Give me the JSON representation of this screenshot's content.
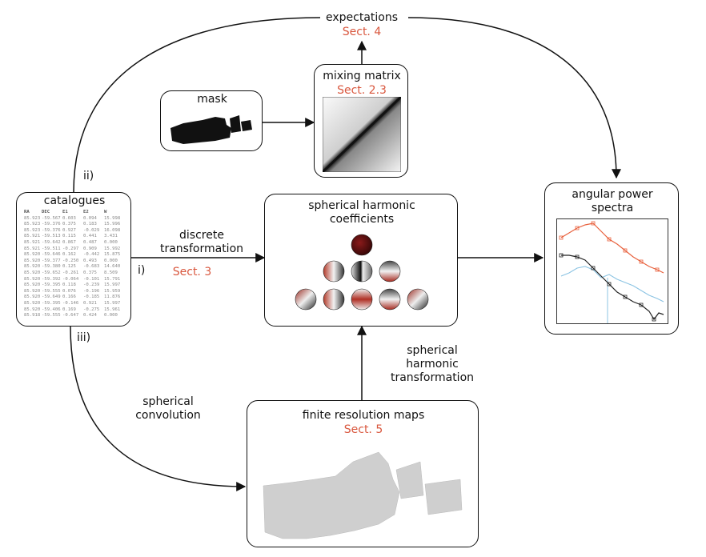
{
  "expectations": {
    "label": "expectations",
    "sect": "Sect. 4"
  },
  "mask": {
    "label": "mask"
  },
  "mixing_matrix": {
    "label": "mixing matrix",
    "sect": "Sect. 2.3"
  },
  "catalogues": {
    "label": "catalogues",
    "columns": [
      "RA",
      "DEC",
      "E1",
      "E2",
      "W"
    ],
    "rows": [
      [
        "85.923",
        "-59.567",
        "0.603",
        "0.094",
        "15.998"
      ],
      [
        "85.923",
        "-59.376",
        "0.375",
        "0.183",
        "15.996"
      ],
      [
        "85.923",
        "-59.376",
        "0.927",
        "-0.029",
        "16.098"
      ],
      [
        "85.921",
        "-59.513",
        "0.115",
        "0.441",
        "3.431"
      ],
      [
        "85.921",
        "-59.642",
        "0.867",
        "0.487",
        "0.000"
      ],
      [
        "85.921",
        "-59.511",
        "-0.297",
        "0.909",
        "15.992"
      ],
      [
        "85.920",
        "-59.646",
        "0.162",
        "-0.442",
        "15.875"
      ],
      [
        "85.920",
        "-59.377",
        "-0.250",
        "0.493",
        "0.000"
      ],
      [
        "85.920",
        "-59.380",
        "0.125",
        "-0.683",
        "14.640"
      ],
      [
        "85.920",
        "-59.652",
        "-0.261",
        "0.375",
        "8.509"
      ],
      [
        "85.920",
        "-59.392",
        "-0.064",
        "-0.101",
        "15.791"
      ],
      [
        "85.920",
        "-59.395",
        "0.118",
        "-0.239",
        "15.997"
      ],
      [
        "85.920",
        "-59.555",
        "0.076",
        "-0.196",
        "15.959"
      ],
      [
        "85.920",
        "-59.649",
        "0.166",
        "-0.185",
        "11.876"
      ],
      [
        "85.920",
        "-59.395",
        "-0.146",
        "0.921",
        "15.997"
      ],
      [
        "85.920",
        "-59.406",
        "0.169",
        "-0.275",
        "15.961"
      ],
      [
        "85.918",
        "-59.555",
        "-0.647",
        "0.424",
        "0.000"
      ]
    ]
  },
  "sh_coefficients": {
    "label_line1": "spherical harmonic",
    "label_line2": "coefficients"
  },
  "angular_power_spectra": {
    "label_line1": "angular power",
    "label_line2": "spectra"
  },
  "finite_resolution_maps": {
    "label": "finite resolution maps",
    "sect": "Sect. 5"
  },
  "edges": {
    "discrete_line1": "discrete",
    "discrete_line2": "transformation",
    "discrete_marker": "i)",
    "discrete_sect": "Sect. 3",
    "ii_marker": "ii)",
    "iii_marker": "iii)",
    "spherical_convolution_line1": "spherical",
    "spherical_convolution_line2": "convolution",
    "sh_transformation_line1": "spherical",
    "sh_transformation_line2": "harmonic",
    "sh_transformation_line3": "transformation"
  },
  "colors": {
    "sect": "#d9573e",
    "series_red": "#e8603c",
    "series_blue": "#8cc4e3",
    "series_black": "#222222"
  }
}
